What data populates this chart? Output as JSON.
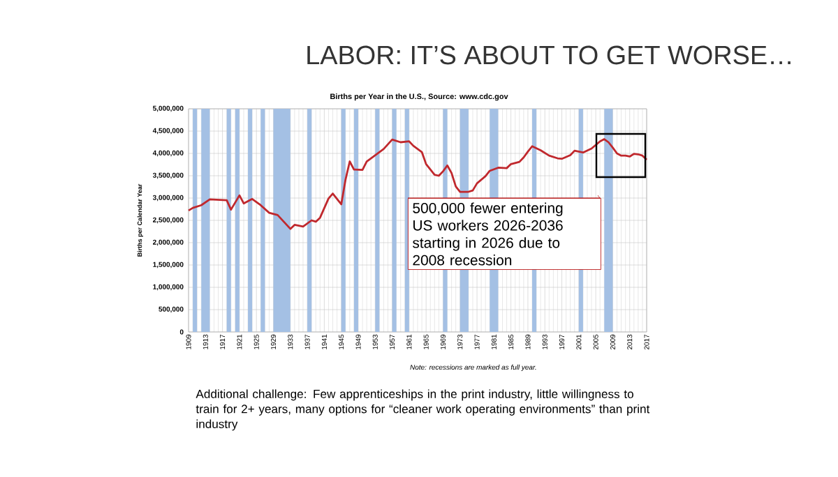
{
  "chart_data": {
    "type": "line",
    "title": "LABOR: IT’S ABOUT TO GET WORSE…",
    "subtitle": "Births per Year in the U.S., Source: www.cdc.gov",
    "ylabel": "Births per Calendar Year",
    "x": [
      1909,
      1910,
      1912,
      1914,
      1916,
      1918,
      1919,
      1921,
      1922,
      1924,
      1926,
      1928,
      1930,
      1933,
      1934,
      1936,
      1938,
      1939,
      1940,
      1942,
      1943,
      1945,
      1946,
      1947,
      1948,
      1950,
      1951,
      1953,
      1955,
      1957,
      1959,
      1961,
      1962,
      1964,
      1965,
      1967,
      1968,
      1969,
      1970,
      1971,
      1972,
      1973,
      1975,
      1976,
      1977,
      1979,
      1980,
      1982,
      1984,
      1985,
      1987,
      1988,
      1989,
      1990,
      1992,
      1994,
      1996,
      1997,
      1999,
      2000,
      2002,
      2004,
      2006,
      2007,
      2008,
      2009,
      2010,
      2011,
      2012,
      2013,
      2014,
      2015,
      2016,
      2017
    ],
    "series": [
      {
        "color": "#c0282d",
        "values": [
          2720000,
          2780000,
          2840000,
          2970000,
          2960000,
          2950000,
          2740000,
          3060000,
          2880000,
          2980000,
          2840000,
          2670000,
          2620000,
          2310000,
          2400000,
          2360000,
          2500000,
          2470000,
          2560000,
          2990000,
          3100000,
          2860000,
          3410000,
          3820000,
          3640000,
          3630000,
          3820000,
          3960000,
          4100000,
          4310000,
          4250000,
          4270000,
          4170000,
          4030000,
          3760000,
          3520000,
          3500000,
          3600000,
          3730000,
          3560000,
          3260000,
          3140000,
          3140000,
          3170000,
          3330000,
          3490000,
          3610000,
          3680000,
          3670000,
          3760000,
          3810000,
          3910000,
          4040000,
          4160000,
          4070000,
          3950000,
          3890000,
          3880000,
          3960000,
          4060000,
          4020000,
          4110000,
          4270000,
          4320000,
          4250000,
          4130000,
          4000000,
          3950000,
          3950000,
          3930000,
          3990000,
          3980000,
          3950000,
          3860000
        ]
      }
    ],
    "xlim": [
      1909,
      2017
    ],
    "xticks": [
      1909,
      1913,
      1917,
      1921,
      1925,
      1929,
      1933,
      1937,
      1941,
      1945,
      1949,
      1953,
      1957,
      1961,
      1965,
      1969,
      1973,
      1977,
      1981,
      1985,
      1989,
      1993,
      1997,
      2001,
      2005,
      2009,
      2013,
      2017
    ],
    "ylim": [
      0,
      5000000
    ],
    "yticks": [
      {
        "value": 0,
        "label": "0"
      },
      {
        "value": 500000,
        "label": "500,000"
      },
      {
        "value": 1000000,
        "label": "1,000,000"
      },
      {
        "value": 1500000,
        "label": "1,500,000"
      },
      {
        "value": 2000000,
        "label": "2,000,000"
      },
      {
        "value": 2500000,
        "label": "2,500,000"
      },
      {
        "value": 3000000,
        "label": "3,000,000"
      },
      {
        "value": 3500000,
        "label": "3,500,000"
      },
      {
        "value": 4000000,
        "label": "4,000,000"
      },
      {
        "value": 4500000,
        "label": "4,500,000"
      },
      {
        "value": 5000000,
        "label": "5,000,000"
      }
    ],
    "grid": true,
    "bands": [
      {
        "axis": "x",
        "from": 1910,
        "to": 1911,
        "color": "#a4c0e4"
      },
      {
        "axis": "x",
        "from": 1912,
        "to": 1914,
        "color": "#a4c0e4"
      },
      {
        "axis": "x",
        "from": 1918,
        "to": 1919,
        "color": "#a4c0e4"
      },
      {
        "axis": "x",
        "from": 1920,
        "to": 1921,
        "color": "#a4c0e4"
      },
      {
        "axis": "x",
        "from": 1923,
        "to": 1924,
        "color": "#a4c0e4"
      },
      {
        "axis": "x",
        "from": 1926,
        "to": 1927,
        "color": "#a4c0e4"
      },
      {
        "axis": "x",
        "from": 1929,
        "to": 1933,
        "color": "#a4c0e4"
      },
      {
        "axis": "x",
        "from": 1937,
        "to": 1938,
        "color": "#a4c0e4"
      },
      {
        "axis": "x",
        "from": 1945,
        "to": 1946,
        "color": "#a4c0e4"
      },
      {
        "axis": "x",
        "from": 1948,
        "to": 1949,
        "color": "#a4c0e4"
      },
      {
        "axis": "x",
        "from": 1953,
        "to": 1954,
        "color": "#a4c0e4"
      },
      {
        "axis": "x",
        "from": 1957,
        "to": 1958,
        "color": "#a4c0e4"
      },
      {
        "axis": "x",
        "from": 1960,
        "to": 1961,
        "color": "#a4c0e4"
      },
      {
        "axis": "x",
        "from": 1969,
        "to": 1970,
        "color": "#a4c0e4"
      },
      {
        "axis": "x",
        "from": 1973,
        "to": 1975,
        "color": "#a4c0e4"
      },
      {
        "axis": "x",
        "from": 1980,
        "to": 1982,
        "color": "#a4c0e4"
      },
      {
        "axis": "x",
        "from": 1990,
        "to": 1991,
        "color": "#a4c0e4"
      },
      {
        "axis": "x",
        "from": 2001,
        "to": 2002,
        "color": "#a4c0e4"
      },
      {
        "axis": "x",
        "from": 2007,
        "to": 2009,
        "color": "#a4c0e4"
      }
    ],
    "annotations": [
      "500,000 fewer entering US workers 2026-2036 starting in 2026 due to 2008 recession",
      "Note: recessions are marked as full year.",
      "Additional challenge: Few apprenticeships in the print industry, little willingness to train for 2+ years, many options for “cleaner work operating environments” than print industry"
    ]
  }
}
